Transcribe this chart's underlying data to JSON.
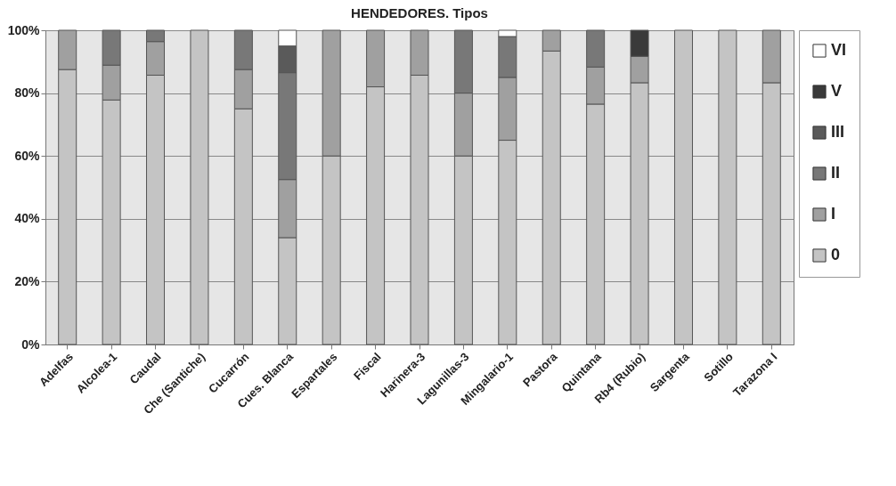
{
  "chart_data": {
    "type": "bar",
    "title": "HENDEDORES. Tipos",
    "stacked": true,
    "legend": "right",
    "grid": "y",
    "categories": [
      "Adelfas",
      "Alcolea-1",
      "Caudal",
      "Che (Santiche)",
      "Cucarrón",
      "Cues. Blanca",
      "Espartales",
      "Fiscal",
      "Harinera-3",
      "Lagunillas-3",
      "Mingalario-1",
      "Pastora",
      "Quintana",
      "Rb4 (Rubio)",
      "Sargenta",
      "Sotillo",
      "Tarazona I"
    ],
    "ylim": [
      0,
      100
    ],
    "yticks": [
      {
        "value": 0,
        "label": "0%"
      },
      {
        "value": 20,
        "label": "20%"
      },
      {
        "value": 40,
        "label": "40%"
      },
      {
        "value": 60,
        "label": "60%"
      },
      {
        "value": 80,
        "label": "80%"
      },
      {
        "value": 100,
        "label": "100%"
      }
    ],
    "series": [
      {
        "name": "0",
        "color": "#c4c4c4",
        "values": [
          87.5,
          77.8,
          85.7,
          100,
          75,
          34,
          60,
          82,
          85.7,
          60,
          65,
          93.4,
          76.5,
          83.3,
          100,
          100,
          83.3
        ]
      },
      {
        "name": "I",
        "color": "#a0a0a0",
        "values": [
          12.5,
          11.1,
          10.7,
          0,
          12.5,
          18.5,
          40,
          18,
          14.3,
          20,
          20,
          6.6,
          11.8,
          8.4,
          0,
          0,
          16.7
        ]
      },
      {
        "name": "II",
        "color": "#787878",
        "values": [
          0,
          11.1,
          3.6,
          0,
          12.5,
          34,
          0,
          0,
          0,
          20,
          13,
          0,
          11.7,
          0,
          0,
          0,
          0
        ]
      },
      {
        "name": "III",
        "color": "#5a5a5a",
        "values": [
          0,
          0,
          0,
          0,
          0,
          8.5,
          0,
          0,
          0,
          0,
          0,
          0,
          0,
          0,
          0,
          0,
          0
        ]
      },
      {
        "name": "V",
        "color": "#3a3a3a",
        "values": [
          0,
          0,
          0,
          0,
          0,
          0,
          0,
          0,
          0,
          0,
          0,
          0,
          0,
          8.3,
          0,
          0,
          0
        ]
      },
      {
        "name": "VI",
        "color": "#ffffff",
        "values": [
          0,
          0,
          0,
          0,
          0,
          5,
          0,
          0,
          0,
          0,
          2,
          0,
          0,
          0,
          0,
          0,
          0
        ]
      }
    ]
  }
}
